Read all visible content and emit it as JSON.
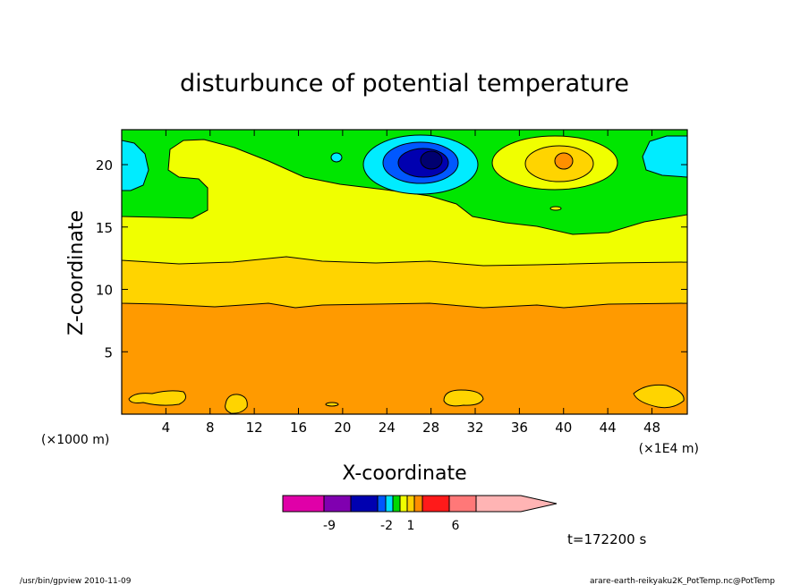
{
  "chart_data": {
    "type": "contour",
    "title": "disturbunce of potential temperature",
    "xlabel": "X-coordinate",
    "ylabel": "Z-coordinate",
    "x_unit_left": "(×1000 m)",
    "x_unit_right": "(×1E4 m)",
    "xlim": [
      0,
      51.2
    ],
    "ylim": [
      0,
      22.8
    ],
    "x_ticks": [
      4,
      8,
      12,
      16,
      20,
      24,
      28,
      32,
      36,
      40,
      44,
      48
    ],
    "y_ticks": [
      5,
      10,
      15,
      20
    ],
    "time_label": "t=172200 s",
    "colorbar": {
      "colors": [
        "#e000a8",
        "#8000b0",
        "#0000b0",
        "#0058ff",
        "#00e0ff",
        "#00d800",
        "#f0ff00",
        "#ffd000",
        "#ff8c00",
        "#ff1a1a",
        "#ff7878",
        "#ffb4b4"
      ],
      "tick_labels": [
        "-9",
        "-2",
        "1",
        "6"
      ]
    },
    "bands": [
      {
        "name": "orange",
        "z_top": 9.0,
        "color": "#ff9a00"
      },
      {
        "name": "gold",
        "z_top": 12.3,
        "color": "#ffd400"
      },
      {
        "name": "yellow",
        "z_top": 16.0,
        "color": "#f0ff00"
      },
      {
        "name": "green",
        "z_top": 22.8,
        "color": "#00e600"
      }
    ],
    "features": [
      {
        "name": "cold-anomaly",
        "x": 28,
        "z": 20.3,
        "color": "#0000b0"
      },
      {
        "name": "warm-anomaly",
        "x": 40,
        "z": 20.3,
        "color": "#ff9000"
      },
      {
        "name": "cyan-left-edge",
        "x": 0.5,
        "z": 19.5,
        "color": "#00ecff"
      },
      {
        "name": "cyan-right-edge",
        "x": 51,
        "z": 20.5,
        "color": "#00ecff"
      }
    ]
  },
  "footer": {
    "left": "/usr/bin/gpview  2010-11-09",
    "right": "arare-earth-reikyaku2K_PotTemp.nc@PotTemp"
  }
}
